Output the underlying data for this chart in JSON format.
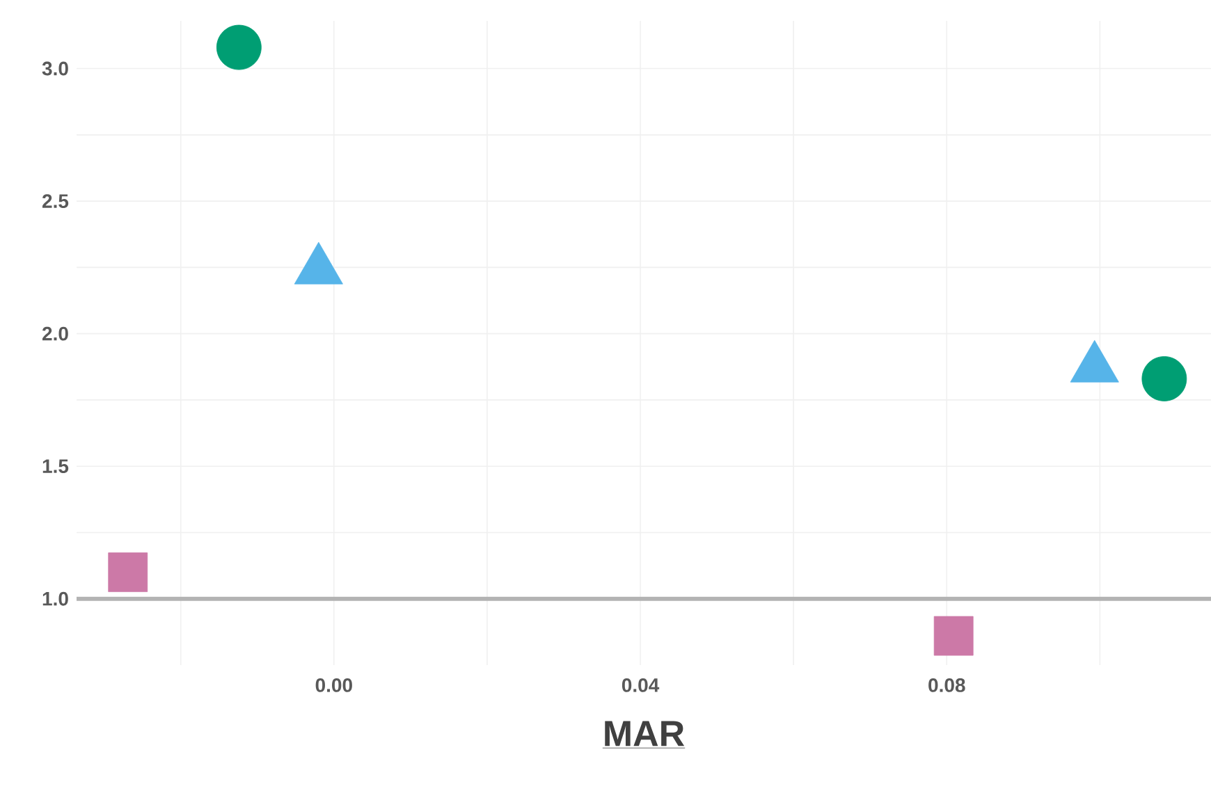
{
  "chart_data": {
    "type": "scatter",
    "xlabel": "MAR",
    "xlim": [
      -0.0336,
      0.1145
    ],
    "ylim": [
      0.75,
      3.18
    ],
    "xticks": [
      {
        "value": -0.02,
        "label": null
      },
      {
        "value": 0,
        "label": "0.00"
      },
      {
        "value": 0.02,
        "label": null
      },
      {
        "value": 0.04,
        "label": "0.04"
      },
      {
        "value": 0.06,
        "label": null
      },
      {
        "value": 0.08,
        "label": "0.08"
      },
      {
        "value": 0.1,
        "label": null
      }
    ],
    "yticks": [
      {
        "value": 1,
        "label": "1.0"
      },
      {
        "value": 1.25,
        "label": null
      },
      {
        "value": 1.5,
        "label": "1.5"
      },
      {
        "value": 1.75,
        "label": null
      },
      {
        "value": 2,
        "label": "2.0"
      },
      {
        "value": 2.25,
        "label": null
      },
      {
        "value": 2.5,
        "label": "2.5"
      },
      {
        "value": 2.75,
        "label": null
      },
      {
        "value": 3,
        "label": "3.0"
      }
    ],
    "grid": true,
    "ref_lines": [
      {
        "axis": "y",
        "value": 1,
        "color": "#b3b3b3"
      }
    ],
    "series": [
      {
        "color": "#009e73",
        "marker": "circle",
        "x": [
          -0.0124,
          0.1084
        ],
        "values": [
          3.08,
          1.83
        ]
      },
      {
        "color": "#56b4e9",
        "marker": "triangle",
        "x": [
          -0.002,
          0.0993
        ],
        "values": [
          2.24,
          1.87
        ]
      },
      {
        "color": "#cc79a7",
        "marker": "square",
        "x": [
          -0.0269,
          0.0809
        ],
        "values": [
          1.1,
          0.86
        ]
      }
    ]
  }
}
